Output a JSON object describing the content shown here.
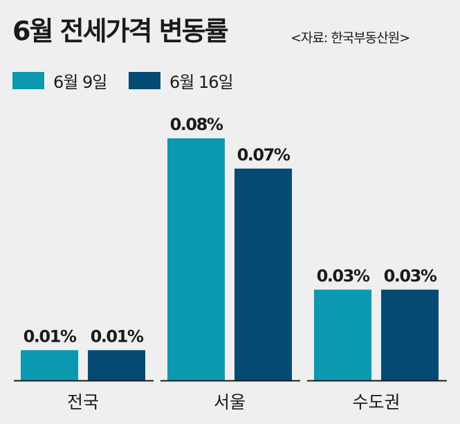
{
  "header": {
    "title": "6월 전세가격 변동률",
    "source": "<자료: 한국부동산원>"
  },
  "colors": {
    "background": "#efefef",
    "series_1": "#0a99b0",
    "series_2": "#044a72",
    "baseline": "#1a1a1a"
  },
  "chart_data": {
    "type": "bar",
    "title": "6월 전세가격 변동률",
    "categories": [
      "전국",
      "서울",
      "수도권"
    ],
    "series": [
      {
        "name": "6월 9일",
        "values": [
          0.01,
          0.08,
          0.03
        ],
        "labels": [
          "0.01%",
          "0.08%",
          "0.03%"
        ]
      },
      {
        "name": "6월 16일",
        "values": [
          0.01,
          0.07,
          0.03
        ],
        "labels": [
          "0.01%",
          "0.07%",
          "0.03%"
        ]
      }
    ],
    "unit": "%",
    "ylim": [
      0,
      0.08
    ],
    "grid": false,
    "legend": "top-left",
    "xlabel": "",
    "ylabel": ""
  }
}
